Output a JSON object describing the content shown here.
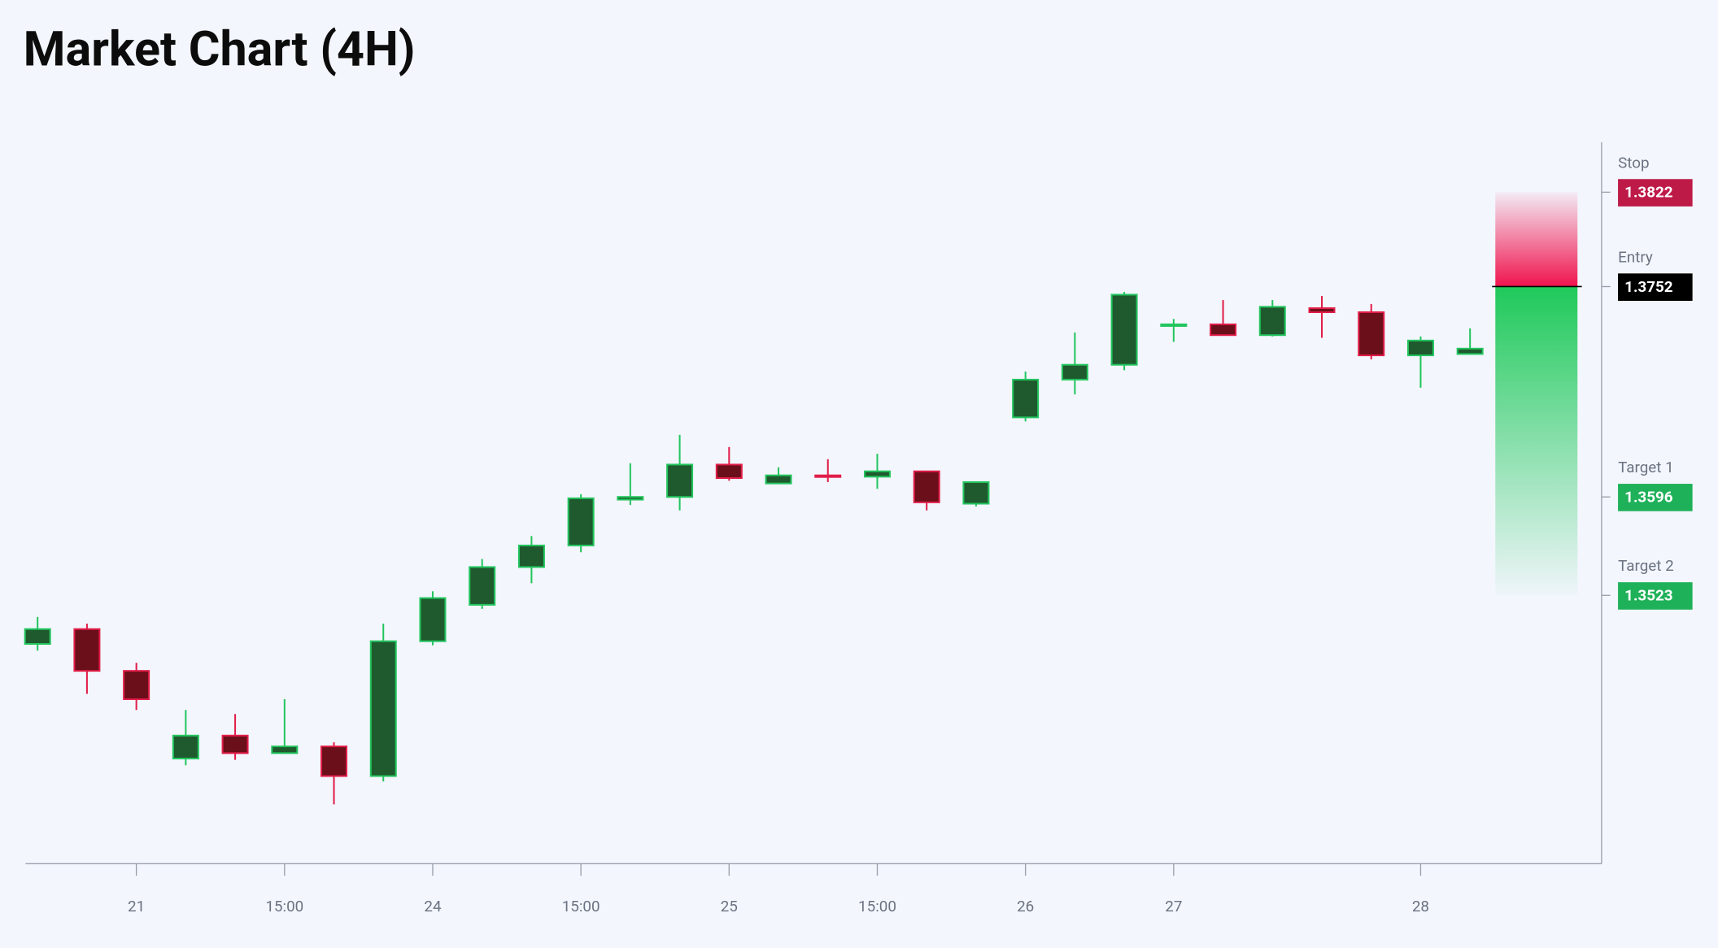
{
  "chart_data": {
    "type": "candlestick",
    "title": "Market Chart (4H)",
    "categories": [
      null,
      null,
      "21",
      null,
      null,
      "15:00",
      null,
      null,
      "24",
      null,
      null,
      "15:00",
      null,
      null,
      "25",
      null,
      null,
      "15:00",
      null,
      null,
      "26",
      null,
      null,
      "27",
      null,
      null,
      null,
      null,
      "28",
      null
    ],
    "open": [
      1.3487,
      1.3498,
      1.3467,
      1.3402,
      1.3419,
      1.3406,
      1.3411,
      1.3389,
      1.3489,
      1.3516,
      1.3544,
      1.356,
      1.3594,
      1.3596,
      1.362,
      1.3606,
      1.3612,
      1.3611,
      1.3615,
      1.3591,
      1.3655,
      1.3683,
      1.3694,
      1.3723,
      1.3724,
      1.3716,
      1.3736,
      1.3733,
      1.3701,
      1.3702
    ],
    "high": [
      1.3507,
      1.3502,
      1.3473,
      1.3438,
      1.3435,
      1.3446,
      1.3414,
      1.3502,
      1.3526,
      1.355,
      1.3567,
      1.3598,
      1.3621,
      1.3642,
      1.3633,
      1.3618,
      1.3624,
      1.3628,
      1.3615,
      1.3607,
      1.3689,
      1.3718,
      1.3748,
      1.3728,
      1.3742,
      1.3742,
      1.3745,
      1.3739,
      1.3715,
      1.3721
    ],
    "low": [
      1.3482,
      1.345,
      1.3438,
      1.3397,
      1.3401,
      1.3406,
      1.3368,
      1.3385,
      1.3486,
      1.3513,
      1.3532,
      1.3555,
      1.359,
      1.3586,
      1.3608,
      1.3606,
      1.3607,
      1.3602,
      1.3586,
      1.3589,
      1.3652,
      1.3672,
      1.369,
      1.3711,
      1.3716,
      1.3715,
      1.3714,
      1.3698,
      1.3677,
      1.3702
    ],
    "close": [
      1.3498,
      1.3467,
      1.3446,
      1.3419,
      1.3406,
      1.3411,
      1.3389,
      1.3489,
      1.3521,
      1.3544,
      1.356,
      1.3595,
      1.3596,
      1.362,
      1.361,
      1.3612,
      1.3611,
      1.3615,
      1.3592,
      1.3607,
      1.3683,
      1.3694,
      1.3746,
      1.3724,
      1.3716,
      1.3737,
      1.3733,
      1.3701,
      1.3712,
      1.3706
    ],
    "up_color": "#22c55e",
    "up_fill": "#1f5a2e",
    "down_color": "#e11d48",
    "down_fill": "#6b0f1a",
    "ylim": [
      1.3324,
      1.3859
    ],
    "levels": [
      {
        "name": "Stop",
        "value": 1.3822,
        "color": "#be1a48"
      },
      {
        "name": "Entry",
        "value": 1.3752,
        "color": "#000000"
      },
      {
        "name": "Target 1",
        "value": 1.3596,
        "color": "#1fb159"
      },
      {
        "name": "Target 2",
        "value": 1.3523,
        "color": "#1fb159"
      }
    ]
  }
}
